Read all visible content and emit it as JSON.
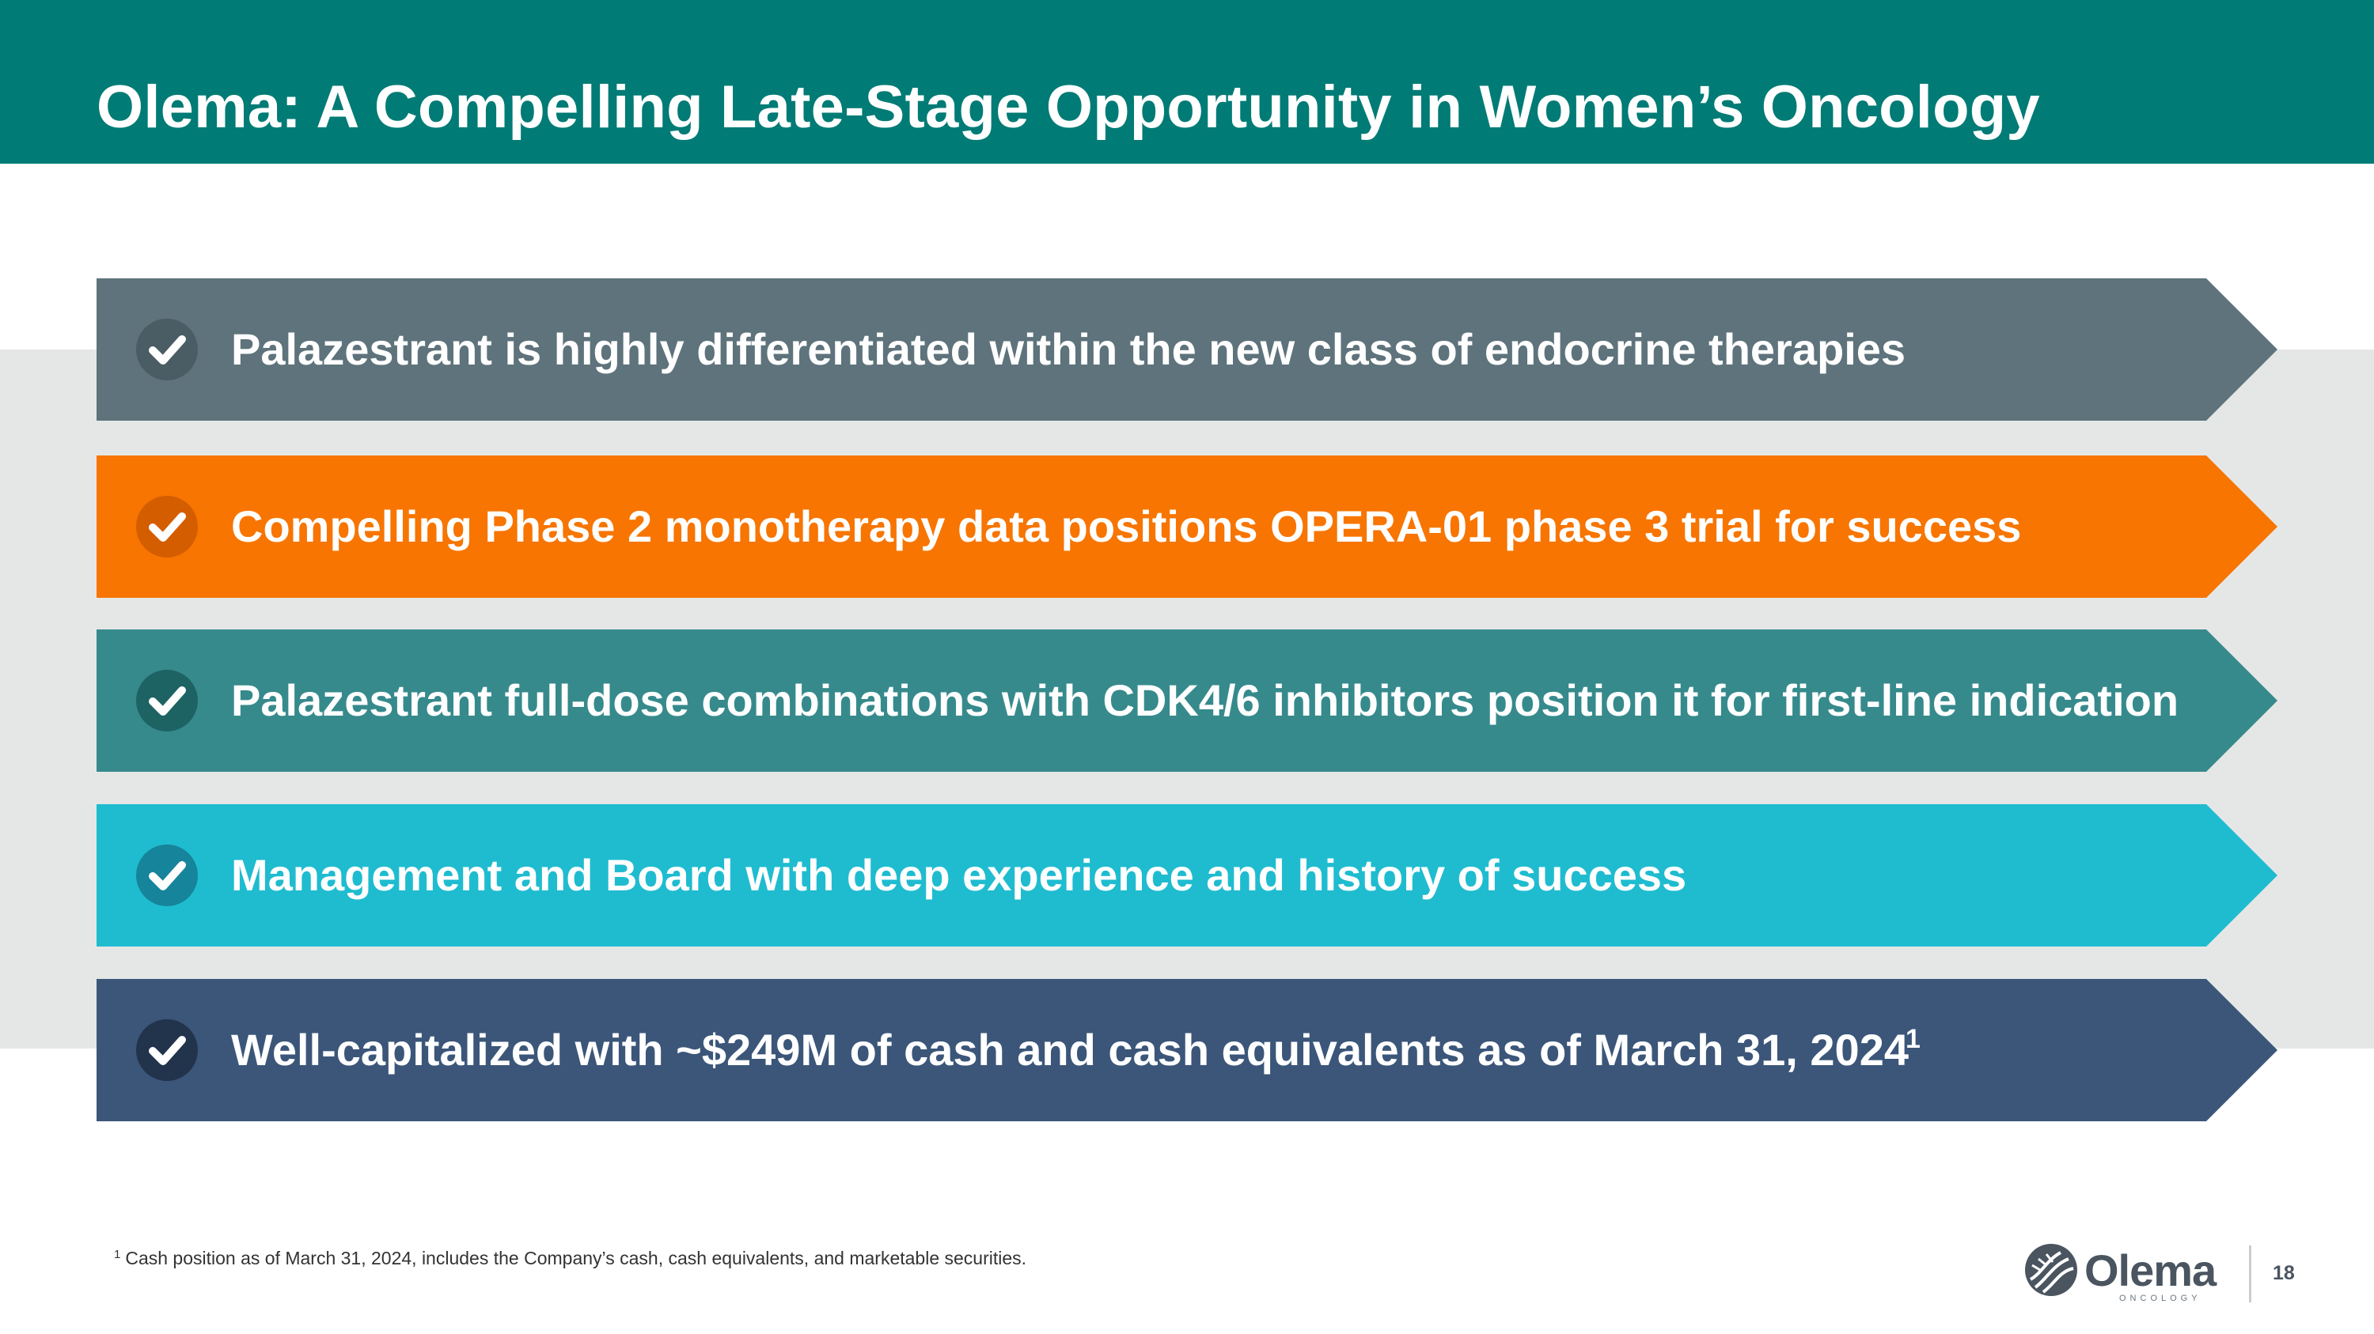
{
  "slide": {
    "title": "Olema: A Compelling Late-Stage Opportunity in Women’s Oncology",
    "page_number": "18"
  },
  "points": [
    {
      "text": "Palazestrant is highly differentiated within the new class of endocrine therapies",
      "color": "#5E737B",
      "check_color": "#4A5C64",
      "superscript": ""
    },
    {
      "text": "Compelling Phase 2 monotherapy data positions OPERA-01 phase 3 trial for success",
      "color": "#F77500",
      "check_color": "#D45D00",
      "superscript": ""
    },
    {
      "text": "Palazestrant full-dose combinations with CDK4/6 inhibitors position it for first-line indication",
      "color": "#368A8C",
      "check_color": "#1E6364",
      "superscript": ""
    },
    {
      "text": "Management and Board with deep experience and history of success",
      "color": "#1FBCD0",
      "check_color": "#16849A",
      "superscript": ""
    },
    {
      "text": "Well-capitalized with ~$249M of cash and cash equivalents as of March 31, 2024",
      "color": "#3B5679",
      "check_color": "#22334C",
      "superscript": "1"
    }
  ],
  "footnote": {
    "marker": "1",
    "text": "Cash position as of March 31, 2024, includes the Company’s cash, cash equivalents, and marketable securities."
  },
  "logo": {
    "name": "Olema",
    "subtitle": "ONCOLOGY",
    "icon": "olema-logo-icon"
  },
  "icons": {
    "check": "check-circle-icon"
  },
  "colors": {
    "header": "#007B75",
    "band": "#E5E7E6"
  }
}
